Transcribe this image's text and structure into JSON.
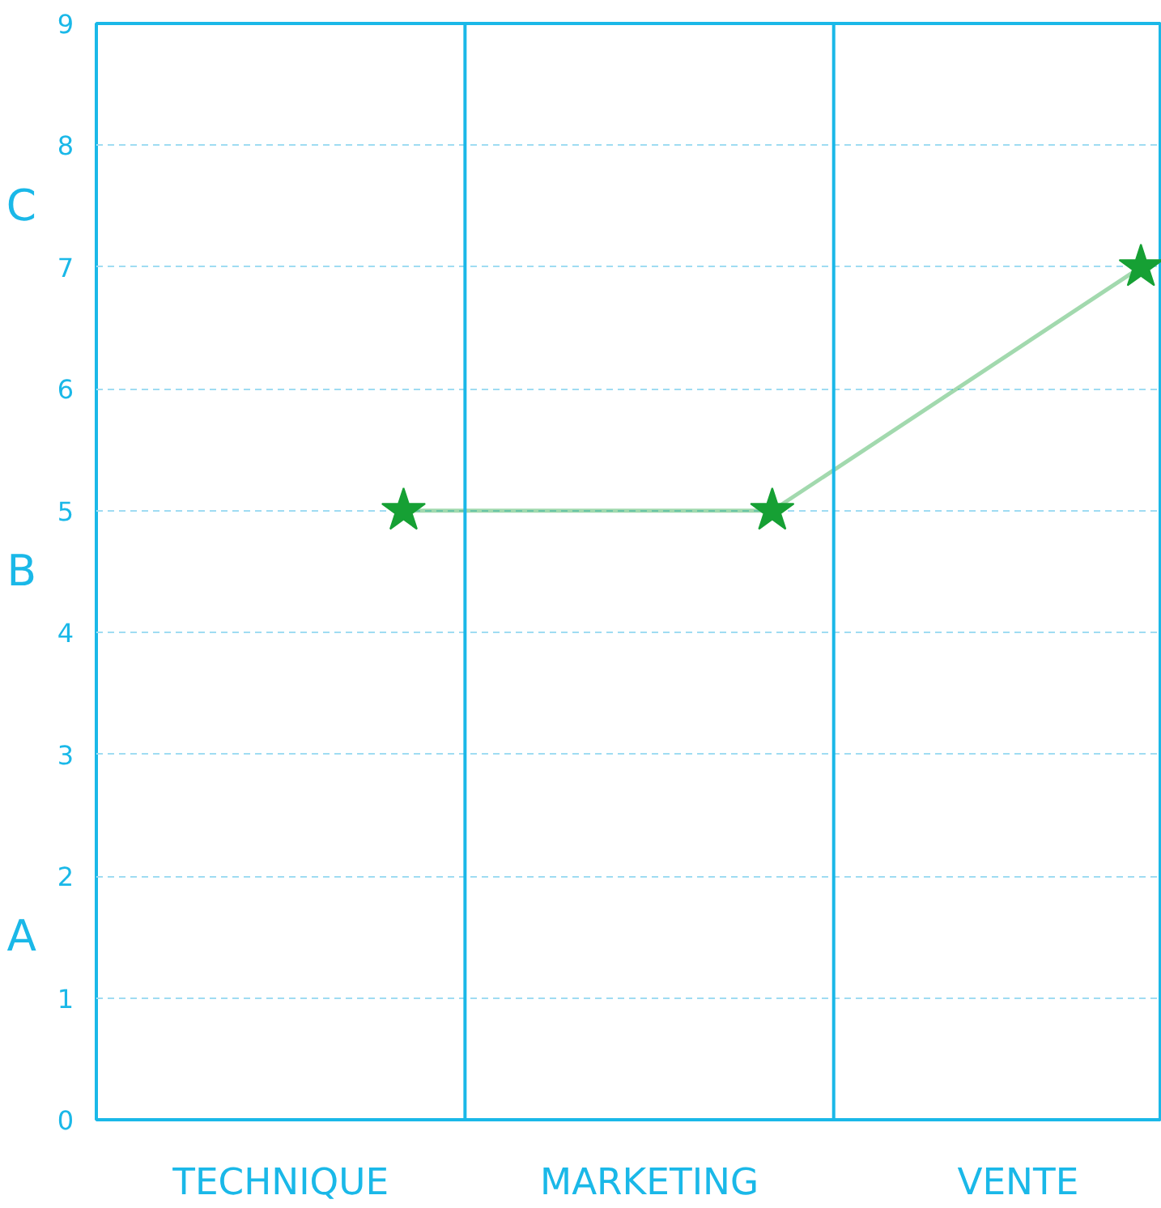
{
  "chart_data": {
    "type": "line",
    "categories": [
      "TECHNIQUE",
      "MARKETING",
      "VENTE"
    ],
    "series": [
      {
        "color": "#16a034",
        "values": [
          5,
          5,
          7
        ]
      }
    ],
    "marker": "star",
    "ylim": [
      0,
      9
    ],
    "yticks": [
      0,
      1,
      2,
      3,
      4,
      5,
      6,
      7,
      8,
      9
    ],
    "grid": "y",
    "annotations": [
      "A",
      "B",
      "C"
    ]
  }
}
